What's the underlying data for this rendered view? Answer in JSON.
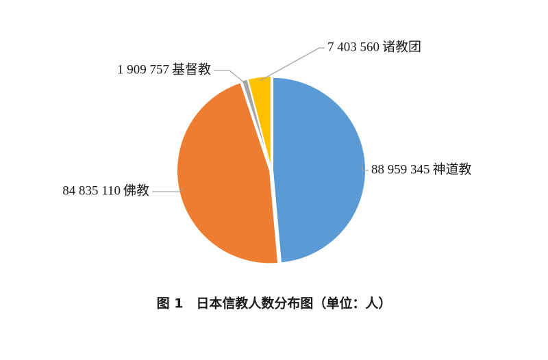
{
  "chart_data": {
    "type": "pie",
    "title": "图 1　日本信教人数分布图（单位：人）",
    "categories": [
      "神道教",
      "佛教",
      "基督教",
      "诸教团"
    ],
    "values": [
      88959345,
      84835110,
      1909757,
      7403560
    ],
    "value_labels": [
      "88 959 345",
      "84 835 110",
      "1 909 757",
      "7 403 560"
    ],
    "colors": [
      "#5b9bd5",
      "#ed7d31",
      "#a5a5a5",
      "#ffc000"
    ]
  }
}
